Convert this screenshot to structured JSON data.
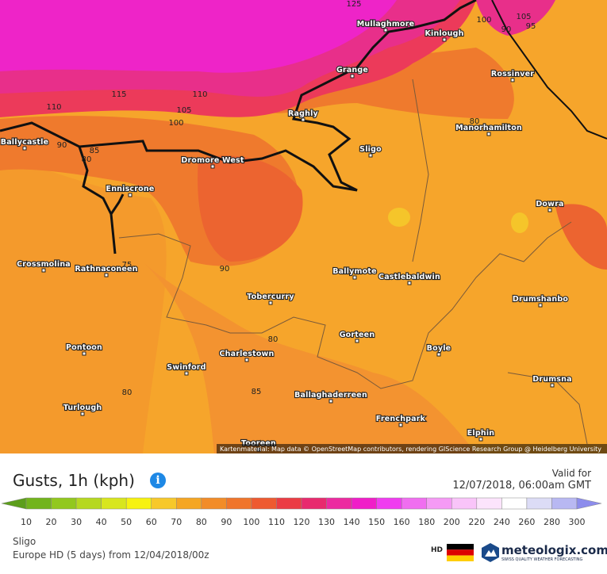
{
  "map": {
    "places": [
      "Mullaghmore",
      "Kinlough",
      "Grange",
      "Rossinver",
      "Raghly",
      "Manorhamilton",
      "Ballycastle",
      "Sligo",
      "Dromore West",
      "Enniscrone",
      "Dowra",
      "Crossmolina",
      "Rathnaconeen",
      "Ballymote",
      "Castlebaldwin",
      "Tobercurry",
      "Drumshanbo",
      "Gorteen",
      "Boyle",
      "Charlestown",
      "Pontoon",
      "Swinford",
      "Drumsna",
      "Ballaghaderreen",
      "Turlough",
      "Frenchpark",
      "Elphin",
      "Tooreen"
    ],
    "contour_labels": [
      "125",
      "115",
      "110",
      "110",
      "105",
      "100",
      "90",
      "85",
      "80",
      "75",
      "90",
      "80",
      "85",
      "80",
      "80",
      "100",
      "95",
      "90",
      "105"
    ],
    "attribution": "Kartenmaterial: Map data © OpenStreetMap contributors, rendering GIScience Research Group @ Heidelberg University"
  },
  "panel": {
    "title": "Gusts, 1h (kph)",
    "valid_label": "Valid for",
    "valid_time": "12/07/2018, 06:00am GMT",
    "legend": {
      "labels": [
        "10",
        "20",
        "30",
        "40",
        "50",
        "60",
        "70",
        "80",
        "90",
        "100",
        "110",
        "120",
        "130",
        "140",
        "150",
        "160",
        "180",
        "200",
        "220",
        "240",
        "260",
        "280",
        "300"
      ],
      "colors": [
        "#5c9e1c",
        "#72b41c",
        "#92c81e",
        "#b6d820",
        "#d8e61e",
        "#f7f210",
        "#f7c82a",
        "#f5a623",
        "#f28c28",
        "#f0752b",
        "#ee5a30",
        "#eb3c44",
        "#e82a6e",
        "#ec2aa0",
        "#f01ec8",
        "#f03cf0",
        "#f06ef0",
        "#f59af5",
        "#f9c4f9",
        "#fce4fc",
        "#ffffff",
        "#dcdcf6",
        "#b8b8f2",
        "#8c8cec"
      ]
    },
    "location": "Sligo",
    "model": "Europe HD  (5 days)  from 12/04/2018/00z",
    "hd": "HD",
    "brand": "meteologix.com",
    "tagline": "SWISS QUALITY WEATHER FORECASTING"
  }
}
